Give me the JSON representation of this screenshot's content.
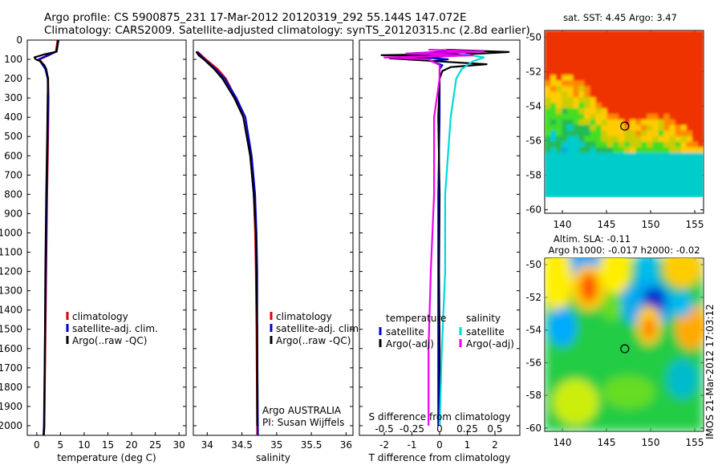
{
  "header": {
    "line1": "Argo profile: CS 5900875_231 17-Mar-2012 20120319_292 55.144S 147.072E",
    "line2": "Climatology: CARS2009. Satellite-adjusted climatology: synTS_20120315.nc (2.8d earlier)"
  },
  "footer_credit": "IMOS 21-Mar-2012 17:03:12",
  "depth_ticks": [
    "0",
    "100",
    "200",
    "300",
    "400",
    "500",
    "600",
    "700",
    "800",
    "900",
    "1000",
    "1100",
    "1200",
    "1300",
    "1400",
    "1500",
    "1600",
    "1700",
    "1800",
    "1900",
    "2000"
  ],
  "colors": {
    "climatology": "#dd0000",
    "satellite_clim": "#0000cc",
    "argo": "#000000",
    "sat_salinity": "#00d8d8",
    "argo_salinity": "#ee00ee"
  },
  "chart_data": [
    {
      "type": "line",
      "xlabel": "temperature (deg C)",
      "x_ticks": [
        "0",
        "5",
        "10",
        "15",
        "20",
        "25",
        "30"
      ],
      "xlim": [
        -2,
        31.5
      ],
      "ylim": [
        2050,
        0
      ],
      "legend": "middle",
      "legend_entries": [
        "climatology",
        "satellite-adj. clim.",
        "Argo(..raw -QC)"
      ],
      "series": [
        {
          "name": "climatology",
          "depth": [
            0,
            60,
            80,
            100,
            120,
            150,
            200,
            300,
            500,
            800,
            1200,
            1600,
            2000,
            2050
          ],
          "values": [
            4.4,
            4.0,
            2.5,
            0.6,
            1.2,
            1.9,
            2.4,
            2.5,
            2.4,
            2.2,
            2.0,
            1.8,
            1.6,
            1.5
          ]
        },
        {
          "name": "satellite-adj. clim.",
          "depth": [
            0,
            60,
            80,
            100,
            120,
            150,
            200,
            300,
            500,
            800,
            1200,
            1600,
            2000,
            2050
          ],
          "values": [
            4.6,
            4.2,
            2.2,
            0.4,
            1.0,
            1.8,
            2.3,
            2.4,
            2.3,
            2.1,
            1.9,
            1.7,
            1.5,
            1.4
          ]
        },
        {
          "name": "Argo(..raw -QC)",
          "depth": [
            0,
            60,
            75,
            90,
            100,
            110,
            130,
            150,
            200,
            300,
            500,
            800,
            1200,
            1600,
            2000,
            2050
          ],
          "values": [
            4.5,
            4.2,
            1.5,
            -0.5,
            -0.2,
            0.8,
            1.6,
            2.0,
            2.4,
            2.3,
            2.2,
            2.0,
            1.8,
            1.7,
            1.6,
            1.5
          ]
        }
      ]
    },
    {
      "type": "line",
      "xlabel": "salinity",
      "x_ticks": [
        "34",
        "34.5",
        "35",
        "35.5",
        "36"
      ],
      "xlim": [
        33.8,
        36.1
      ],
      "ylim": [
        2050,
        0
      ],
      "legend": "middle",
      "legend_entries": [
        "climatology",
        "satellite-adj. clim.",
        "Argo(..raw -QC)"
      ],
      "annotation": [
        "Argo AUSTRALIA",
        "PI: Susan Wijffels"
      ],
      "series": [
        {
          "name": "climatology",
          "depth": [
            60,
            100,
            150,
            200,
            300,
            400,
            600,
            800,
            1000,
            1200,
            1500,
            2050
          ],
          "values": [
            33.86,
            33.98,
            34.15,
            34.27,
            34.41,
            34.52,
            34.62,
            34.67,
            34.69,
            34.7,
            34.71,
            34.72
          ]
        },
        {
          "name": "satellite-adj. clim.",
          "depth": [
            60,
            100,
            150,
            200,
            300,
            400,
            600,
            800,
            1000,
            1200,
            1500,
            2050
          ],
          "values": [
            33.85,
            33.96,
            34.12,
            34.25,
            34.42,
            34.55,
            34.64,
            34.69,
            34.71,
            34.72,
            34.72,
            34.73
          ]
        },
        {
          "name": "Argo(..raw -QC)",
          "depth": [
            60,
            80,
            100,
            150,
            200,
            300,
            400,
            600,
            800,
            1000,
            1200,
            1500,
            2000
          ],
          "values": [
            33.84,
            33.88,
            33.95,
            34.1,
            34.22,
            34.39,
            34.52,
            34.62,
            34.67,
            34.7,
            34.71,
            34.72,
            34.72
          ]
        }
      ]
    },
    {
      "type": "line",
      "xlabel": "T difference from climatology",
      "x_ticks_T": [
        "-2",
        "-1",
        "0",
        "1",
        "2"
      ],
      "xlabel_top": "S difference from climatology",
      "x_ticks_S": [
        "-0.5",
        "-0.25",
        "0",
        "0.25",
        "0.5"
      ],
      "xlim_T": [
        -2.9,
        2.9
      ],
      "ylim": [
        2050,
        0
      ],
      "legend": "middle",
      "legend_headers": [
        "temperature",
        "salinity"
      ],
      "legend_entries": [
        "satellite",
        "Argo(-adj)",
        "satellite",
        "Argo(-adj)"
      ],
      "series": [
        {
          "name": "satellite",
          "depth": [
            50,
            60,
            70,
            80,
            90,
            100,
            110,
            130,
            150,
            200,
            400,
            800,
            1200,
            1600,
            2000
          ],
          "values": [
            0.1,
            0.3,
            -1.2,
            0.8,
            -0.6,
            0.3,
            -0.3,
            0.1,
            0.0,
            0.0,
            0.0,
            -0.05,
            -0.05,
            -0.05,
            -0.05
          ]
        },
        {
          "name": "Argo(-adj)",
          "depth": [
            50,
            62,
            70,
            78,
            85,
            95,
            105,
            115,
            125,
            140,
            160,
            200,
            400,
            800,
            1200,
            1600,
            2000
          ],
          "values": [
            0.2,
            2.5,
            1.5,
            -2.1,
            0.1,
            -1.8,
            -0.6,
            0.5,
            1.7,
            0.4,
            0.1,
            0.0,
            -0.05,
            0.0,
            -0.02,
            0.0,
            0.0
          ]
        },
        {
          "name": "satellite",
          "depth": [
            50,
            70,
            90,
            110,
            150,
            200,
            400,
            800,
            1200,
            1600,
            2000
          ],
          "values": [
            0.05,
            0.2,
            0.4,
            0.3,
            0.2,
            0.15,
            0.1,
            0.05,
            0.05,
            0.02,
            0.0
          ]
        },
        {
          "name": "Argo(-adj)",
          "depth": [
            50,
            60,
            70,
            80,
            90,
            100,
            130,
            200,
            400,
            800,
            1200,
            1600,
            2000
          ],
          "values": [
            -0.1,
            0.4,
            -0.3,
            0.3,
            -0.5,
            -0.1,
            0.0,
            0.0,
            -0.05,
            -0.05,
            -0.08,
            -0.1,
            -0.1
          ]
        }
      ]
    },
    {
      "type": "heatmap",
      "title": "sat. SST: 4.45 Argo: 3.47",
      "x_ticks": [
        "140",
        "145",
        "150",
        "155"
      ],
      "y_ticks": [
        "-50",
        "-52",
        "-54",
        "-56",
        "-58",
        "-60"
      ],
      "xlim": [
        138,
        156
      ],
      "ylim": [
        -60.2,
        -49.6
      ],
      "marker": {
        "lon": 147.072,
        "lat": -55.144
      }
    },
    {
      "type": "heatmap",
      "title_lines": [
        "Altim. SLA: -0.11",
        "Argo h1000: -0.017 h2000: -0.02"
      ],
      "x_ticks": [
        "140",
        "145",
        "150",
        "155"
      ],
      "y_ticks": [
        "-50",
        "-52",
        "-54",
        "-56",
        "-58",
        "-60"
      ],
      "xlim": [
        138,
        156
      ],
      "ylim": [
        -60.2,
        -49.6
      ],
      "marker": {
        "lon": 147.072,
        "lat": -55.144
      }
    }
  ]
}
